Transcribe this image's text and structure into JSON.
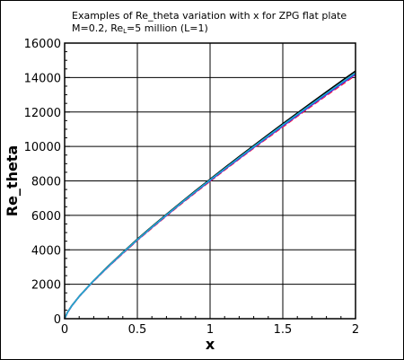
{
  "chart_data": {
    "type": "line",
    "title": {
      "line1": "Examples of Re_theta variation with x for ZPG flat plate",
      "line2_pre": "M=0.2, Re",
      "line2_sub": "L",
      "line2_post": "=5 million (L=1)"
    },
    "xlabel": "x",
    "ylabel": "Re_theta",
    "xlim": [
      0,
      2
    ],
    "ylim": [
      0,
      16000
    ],
    "grid": true,
    "x_ticks": [
      0,
      0.5,
      1,
      1.5,
      2
    ],
    "x_tick_labels": [
      "0",
      "0.5",
      "1",
      "1.5",
      "2"
    ],
    "y_ticks": [
      0,
      2000,
      4000,
      6000,
      8000,
      10000,
      12000,
      14000,
      16000
    ],
    "y_tick_labels": [
      "0",
      "2000",
      "4000",
      "6000",
      "8000",
      "10000",
      "12000",
      "14000",
      "16000"
    ],
    "x": [
      0,
      0.02,
      0.05,
      0.1,
      0.2,
      0.3,
      0.4,
      0.5,
      0.6,
      0.7,
      0.8,
      0.9,
      1.0,
      1.1,
      1.2,
      1.3,
      1.4,
      1.5,
      1.6,
      1.7,
      1.8,
      1.9,
      2.0
    ],
    "series": [
      {
        "name": "black",
        "color": "#000000",
        "dash": "",
        "values": [
          0,
          380,
          770,
          1300,
          2220,
          3060,
          3850,
          4620,
          5350,
          6060,
          6750,
          7430,
          8100,
          8760,
          9410,
          10050,
          10690,
          11320,
          11940,
          12560,
          13170,
          13780,
          14380
        ]
      },
      {
        "name": "red",
        "color": "#ff0000",
        "dash": "6,3",
        "values": [
          0,
          370,
          750,
          1280,
          2190,
          3010,
          3790,
          4550,
          5270,
          5970,
          6660,
          7330,
          7980,
          8630,
          9270,
          9900,
          10520,
          11140,
          11750,
          12360,
          12960,
          13550,
          14140
        ]
      },
      {
        "name": "magenta",
        "color": "#cc33cc",
        "dash": "",
        "values": [
          0,
          370,
          755,
          1285,
          2200,
          3020,
          3805,
          4565,
          5290,
          5990,
          6680,
          7350,
          8005,
          8655,
          9295,
          9930,
          10555,
          11175,
          11790,
          12400,
          13000,
          13595,
          14185
        ]
      },
      {
        "name": "blue",
        "color": "#2233dd",
        "dash": "",
        "values": [
          0,
          372,
          758,
          1290,
          2205,
          3030,
          3815,
          4575,
          5300,
          6005,
          6695,
          7370,
          8025,
          8675,
          9320,
          9955,
          10580,
          11205,
          11820,
          12430,
          13035,
          13630,
          14225
        ]
      },
      {
        "name": "cyan",
        "color": "#22aacc",
        "dash": "",
        "values": [
          0,
          375,
          762,
          1295,
          2210,
          3040,
          3830,
          4590,
          5320,
          6025,
          6720,
          7395,
          8055,
          8710,
          9355,
          9990,
          10620,
          11245,
          11865,
          12475,
          13080,
          13680,
          14275
        ]
      }
    ]
  }
}
